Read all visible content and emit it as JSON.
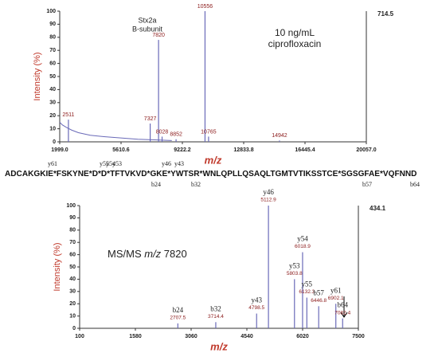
{
  "chart_data": [
    {
      "type": "spectrum",
      "ylabel": "Intensity (%)",
      "xlabel": "m/z",
      "scale_max": 714.5,
      "annotation_left": [
        "Stx2a",
        "B-subunit"
      ],
      "annotation_right": [
        "10 ng/mL",
        "ciprofloxacin"
      ],
      "xlim": [
        1999,
        20057
      ],
      "xticks": [
        {
          "value": 1999,
          "label": "1999.0"
        },
        5610.6,
        9222.2,
        12833.8,
        16445.4,
        {
          "value": 20057,
          "label": "20057.0"
        }
      ],
      "ylim": [
        0,
        100
      ],
      "yticks": [
        0,
        10,
        20,
        30,
        40,
        50,
        60,
        70,
        80,
        90,
        100
      ],
      "color": "#6a6ab8",
      "label_color": "#8b1a1a",
      "noise": {
        "x": [
          1999,
          2150,
          2400,
          2700,
          3100,
          3800,
          4600,
          5600,
          6600,
          7600,
          8600
        ],
        "values": [
          15,
          13,
          11,
          9,
          7,
          5,
          4,
          3,
          2,
          1.5,
          1
        ]
      },
      "peaks": {
        "x": [
          2511,
          7327,
          7820,
          8028,
          8852,
          10556,
          10765,
          14942
        ],
        "values": [
          17,
          14,
          78,
          4,
          2,
          100,
          4,
          1
        ]
      }
    },
    {
      "type": "spectrum",
      "ylabel": "Intensity (%)",
      "xlabel": "m/z",
      "scale_max": 434.1,
      "title": [
        "MS/MS ",
        "m/z",
        " 7820"
      ],
      "xlim": [
        100,
        7500
      ],
      "xticks": [
        100,
        1580,
        3060,
        4540,
        6020,
        7500
      ],
      "ylim": [
        0,
        100
      ],
      "yticks": [
        0,
        10,
        20,
        30,
        40,
        50,
        60,
        70,
        80,
        90,
        100
      ],
      "color": "#6a6ab8",
      "label_color": "#8b1a1a",
      "peaks": {
        "x": [
          2707.5,
          3714.4,
          4798.5,
          5112.9,
          5803.8,
          6018.9,
          6132.3,
          6446.8,
          6902.1,
          7082.4
        ],
        "values": [
          4,
          5,
          12,
          100,
          40,
          62,
          25,
          18,
          20,
          8
        ],
        "ions": [
          "b24",
          "b32",
          "y43",
          "y46",
          "y53",
          "y54",
          "y55",
          "b57",
          "y61",
          "b64"
        ]
      }
    }
  ],
  "sequence": {
    "text": "ADCAKGKIE*FSKYNE*D*D*TFTVKVD*GKE*YWTSR*WNLQPLLQSAQLTGMTVTIKSSTCE*SGSGFAE*VQFNND",
    "above": [
      "y61",
      "y55",
      "y54",
      "y53",
      "y46",
      "y43"
    ],
    "below": [
      "b24",
      "b32",
      "b57",
      "b64"
    ]
  }
}
